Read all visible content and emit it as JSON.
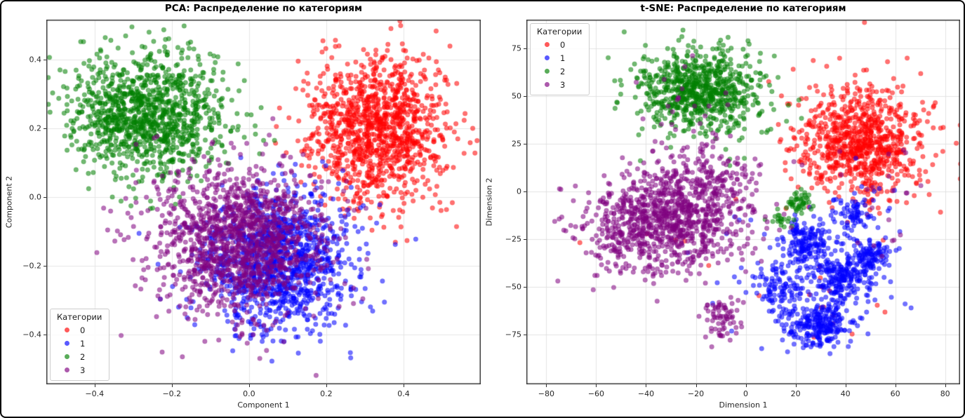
{
  "chart_data": [
    {
      "type": "scatter",
      "title": "PCA: Распределение по категориям",
      "xlabel": "Component 1",
      "ylabel": "Component 2",
      "xlim": [
        -0.525,
        0.6
      ],
      "ylim": [
        -0.545,
        0.516
      ],
      "grid": true,
      "grid_color": "#e6e6e6",
      "spine_color": "#2f2f2f",
      "xticks": [
        {
          "v": -0.4,
          "label": "−0.4"
        },
        {
          "v": -0.2,
          "label": "−0.2"
        },
        {
          "v": 0.0,
          "label": "0.0"
        },
        {
          "v": 0.2,
          "label": "0.2"
        },
        {
          "v": 0.4,
          "label": "0.4"
        }
      ],
      "yticks": [
        {
          "v": 0.4,
          "label": "0.4"
        },
        {
          "v": 0.2,
          "label": "0.2"
        },
        {
          "v": 0.0,
          "label": "0.0"
        },
        {
          "v": -0.2,
          "label": "−0.2"
        },
        {
          "v": -0.4,
          "label": "−0.4"
        }
      ],
      "legend": {
        "title": "Категории",
        "loc": "lower left",
        "items": [
          {
            "label": "0",
            "color": "#ff0000"
          },
          {
            "label": "1",
            "color": "#0000ff"
          },
          {
            "label": "2",
            "color": "#008000"
          },
          {
            "label": "3",
            "color": "#800080"
          }
        ]
      },
      "marker": {
        "radius": 3.2,
        "alpha": 0.55
      },
      "clusters": [
        {
          "category": "0",
          "color": "#ff0000",
          "n": 1150,
          "cx": 0.335,
          "cy": 0.195,
          "sx": 0.092,
          "sy": 0.105,
          "seed": 3
        },
        {
          "category": "1",
          "color": "#0000ff",
          "n": 1150,
          "cx": 0.075,
          "cy": -0.19,
          "sx": 0.095,
          "sy": 0.1,
          "seed": 5
        },
        {
          "category": "2",
          "color": "#008000",
          "n": 1150,
          "cx": -0.265,
          "cy": 0.245,
          "sx": 0.098,
          "sy": 0.088,
          "seed": 7
        },
        {
          "category": "3",
          "color": "#800080",
          "n": 1350,
          "cx": -0.025,
          "cy": -0.125,
          "sx": 0.115,
          "sy": 0.105,
          "seed": 13
        }
      ]
    },
    {
      "type": "scatter",
      "title": "t-SNE: Распределение по категориям",
      "xlabel": "Dimension 1",
      "ylabel": "Dimension 2",
      "xlim": [
        -88,
        86
      ],
      "ylim": [
        -101,
        90
      ],
      "grid": true,
      "grid_color": "#e3e3e3",
      "spine_color": "#2f2f2f",
      "xticks": [
        {
          "v": -80,
          "label": "−80"
        },
        {
          "v": -60,
          "label": "−60"
        },
        {
          "v": -40,
          "label": "−40"
        },
        {
          "v": -20,
          "label": "−20"
        },
        {
          "v": 0,
          "label": "0"
        },
        {
          "v": 20,
          "label": "20"
        },
        {
          "v": 40,
          "label": "40"
        },
        {
          "v": 60,
          "label": "60"
        },
        {
          "v": 80,
          "label": "80"
        }
      ],
      "yticks": [
        {
          "v": 75,
          "label": "75"
        },
        {
          "v": 50,
          "label": "50"
        },
        {
          "v": 25,
          "label": "25"
        },
        {
          "v": 0,
          "label": "0"
        },
        {
          "v": -25,
          "label": "−25"
        },
        {
          "v": -50,
          "label": "−50"
        },
        {
          "v": -75,
          "label": "−75"
        }
      ],
      "legend": {
        "title": "Категории",
        "loc": "upper left",
        "items": [
          {
            "label": "0",
            "color": "#ff0000"
          },
          {
            "label": "1",
            "color": "#0000ff"
          },
          {
            "label": "2",
            "color": "#008000"
          },
          {
            "label": "3",
            "color": "#800080"
          }
        ]
      },
      "marker": {
        "radius": 3.2,
        "alpha": 0.55
      },
      "clusters": [
        {
          "category": "0",
          "color": "#ff0000",
          "n": 850,
          "cx": 46,
          "cy": 26,
          "sx": 13,
          "sy": 15,
          "seed": 21
        },
        {
          "category": "0",
          "color": "#ff0000",
          "n": 14,
          "cx": 25,
          "cy": -55,
          "sx": 14,
          "sy": 14,
          "seed": 23
        },
        {
          "category": "0",
          "color": "#ff0000",
          "n": 6,
          "cx": -30,
          "cy": -20,
          "sx": 18,
          "sy": 12,
          "seed": 24
        },
        {
          "category": "1",
          "color": "#0000ff",
          "n": 170,
          "cx": 24,
          "cy": -27,
          "sx": 5,
          "sy": 6,
          "seed": 31
        },
        {
          "category": "1",
          "color": "#0000ff",
          "n": 220,
          "cx": 38,
          "cy": -45,
          "sx": 7,
          "sy": 6,
          "seed": 32
        },
        {
          "category": "1",
          "color": "#0000ff",
          "n": 260,
          "cx": 29,
          "cy": -70,
          "sx": 7,
          "sy": 6,
          "seed": 33
        },
        {
          "category": "1",
          "color": "#0000ff",
          "n": 120,
          "cx": 49,
          "cy": -33,
          "sx": 5,
          "sy": 5,
          "seed": 34
        },
        {
          "category": "1",
          "color": "#0000ff",
          "n": 90,
          "cx": 13,
          "cy": -51,
          "sx": 5,
          "sy": 6,
          "seed": 35
        },
        {
          "category": "1",
          "color": "#0000ff",
          "n": 70,
          "cx": 43,
          "cy": -13,
          "sx": 4,
          "sy": 5,
          "seed": 36
        },
        {
          "category": "1",
          "color": "#0000ff",
          "n": 40,
          "cx": 20,
          "cy": -42,
          "sx": 16,
          "sy": 16,
          "seed": 37
        },
        {
          "category": "1",
          "color": "#0000ff",
          "n": 12,
          "cx": 55,
          "cy": -5,
          "sx": 10,
          "sy": 8,
          "seed": 38
        },
        {
          "category": "2",
          "color": "#008000",
          "n": 760,
          "cx": -18,
          "cy": 53,
          "sx": 12,
          "sy": 11,
          "seed": 41
        },
        {
          "category": "2",
          "color": "#008000",
          "n": 45,
          "cx": 21,
          "cy": -5,
          "sx": 2.5,
          "sy": 3,
          "seed": 42
        },
        {
          "category": "2",
          "color": "#008000",
          "n": 18,
          "cx": 13,
          "cy": -15,
          "sx": 2.5,
          "sy": 2.5,
          "seed": 43
        },
        {
          "category": "2",
          "color": "#008000",
          "n": 10,
          "cx": 5,
          "cy": 25,
          "sx": 12,
          "sy": 10,
          "seed": 44
        },
        {
          "category": "3",
          "color": "#800080",
          "n": 950,
          "cx": -33,
          "cy": -17,
          "sx": 16,
          "sy": 13,
          "seed": 51
        },
        {
          "category": "3",
          "color": "#800080",
          "n": 170,
          "cx": -14,
          "cy": 8,
          "sx": 11,
          "sy": 9,
          "seed": 52
        },
        {
          "category": "3",
          "color": "#800080",
          "n": 70,
          "cx": -10,
          "cy": -67,
          "sx": 4,
          "sy": 5,
          "seed": 53
        },
        {
          "category": "3",
          "color": "#800080",
          "n": 26,
          "cx": -22,
          "cy": 42,
          "sx": 14,
          "sy": 11,
          "seed": 54
        },
        {
          "category": "3",
          "color": "#800080",
          "n": 12,
          "cx": 45,
          "cy": 8,
          "sx": 14,
          "sy": 10,
          "seed": 55
        },
        {
          "category": "3",
          "color": "#800080",
          "n": 8,
          "cx": 60,
          "cy": -25,
          "sx": 8,
          "sy": 8,
          "seed": 56
        }
      ]
    }
  ]
}
